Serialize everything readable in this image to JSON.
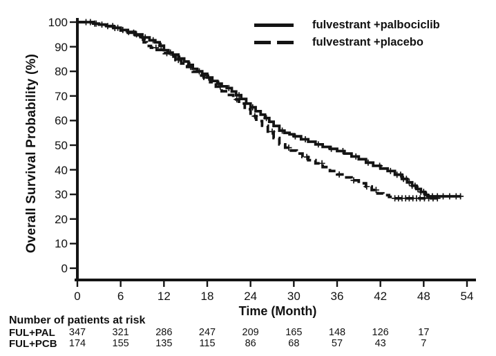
{
  "figure": {
    "background_color": "#ffffff",
    "line_color": "#141414"
  },
  "chart_data": {
    "type": "line",
    "subtype": "kaplan-meier-step",
    "title": "",
    "xlabel": "Time (Month)",
    "ylabel": "Overall Survival Probability (%)",
    "xlim": [
      0,
      54
    ],
    "ylim": [
      0,
      100
    ],
    "x_ticks": [
      0,
      6,
      12,
      18,
      24,
      30,
      36,
      42,
      48,
      54
    ],
    "y_ticks": [
      0,
      10,
      20,
      30,
      40,
      50,
      60,
      70,
      80,
      90,
      100
    ],
    "grid": false,
    "legend_position": "top-right",
    "series": [
      {
        "name": "fulvestrant +palbociclib",
        "style": "solid",
        "points": [
          [
            0,
            100
          ],
          [
            1.6,
            100
          ],
          [
            2.2,
            99.4
          ],
          [
            3,
            99
          ],
          [
            4,
            98.4
          ],
          [
            5,
            97.7
          ],
          [
            6,
            96.8
          ],
          [
            7,
            96
          ],
          [
            8,
            95
          ],
          [
            9,
            93.8
          ],
          [
            10,
            92.6
          ],
          [
            10.8,
            91.8
          ],
          [
            11.4,
            90.4
          ],
          [
            12,
            88.6
          ],
          [
            12.6,
            87.6
          ],
          [
            13.2,
            86.8
          ],
          [
            14,
            85.2
          ],
          [
            14.8,
            84
          ],
          [
            15.4,
            82.6
          ],
          [
            16,
            81
          ],
          [
            16.6,
            80
          ],
          [
            17.3,
            79
          ],
          [
            18,
            77.5
          ],
          [
            18.7,
            76.1
          ],
          [
            19.4,
            75
          ],
          [
            20,
            73.9
          ],
          [
            20.7,
            73.2
          ],
          [
            21.4,
            71.8
          ],
          [
            22,
            70.3
          ],
          [
            22.7,
            68.8
          ],
          [
            23.4,
            66.9
          ],
          [
            24,
            65.4
          ],
          [
            24.7,
            63.8
          ],
          [
            25.4,
            62.4
          ],
          [
            26,
            61
          ],
          [
            26.6,
            59.5
          ],
          [
            27.2,
            57.8
          ],
          [
            28,
            55.9
          ],
          [
            28.7,
            55
          ],
          [
            29.4,
            54.4
          ],
          [
            30,
            53.6
          ],
          [
            31,
            52.4
          ],
          [
            32,
            51.4
          ],
          [
            33,
            50.3
          ],
          [
            34,
            49.3
          ],
          [
            35,
            48.5
          ],
          [
            36,
            47.6
          ],
          [
            37,
            46.6
          ],
          [
            38,
            45.4
          ],
          [
            39,
            44.3
          ],
          [
            40,
            42.9
          ],
          [
            41,
            41.6
          ],
          [
            42,
            40.5
          ],
          [
            43,
            39.5
          ],
          [
            44,
            38
          ],
          [
            45,
            36.3
          ],
          [
            45.7,
            34.9
          ],
          [
            46.4,
            33.5
          ],
          [
            47,
            32.2
          ],
          [
            47.6,
            31
          ],
          [
            48.2,
            29.8
          ],
          [
            48.6,
            29.2
          ],
          [
            53.2,
            29.2
          ]
        ],
        "censor_times": [
          1.2,
          1.8,
          2.6,
          3.4,
          4.2,
          4.9,
          5.6,
          6.3,
          7.1,
          8.2,
          9.4,
          10.5,
          11.6,
          12.9,
          14.2,
          15.6,
          16.9,
          18.2,
          19.6,
          21,
          22.4,
          24.3,
          26.2,
          28.4,
          30.2,
          31.6,
          33.4,
          35.2,
          36.8,
          38.6,
          40.3,
          41.9,
          43.4,
          44.3,
          44.8,
          45.2,
          45.6,
          46,
          46.4,
          46.8,
          47.2,
          47.6,
          48,
          48.4,
          49.2,
          49.9,
          50.7,
          51.6,
          52.5,
          53.1
        ]
      },
      {
        "name": "fulvestrant +placebo",
        "style": "dashed",
        "points": [
          [
            0,
            100
          ],
          [
            1.6,
            100
          ],
          [
            2.2,
            99.4
          ],
          [
            3,
            99
          ],
          [
            4,
            98.3
          ],
          [
            5,
            97.6
          ],
          [
            6,
            96.6
          ],
          [
            7,
            95.7
          ],
          [
            8,
            94.7
          ],
          [
            8.7,
            93.6
          ],
          [
            9.2,
            91.8
          ],
          [
            9.6,
            90.3
          ],
          [
            10.2,
            89.6
          ],
          [
            11,
            88.7
          ],
          [
            12,
            87.4
          ],
          [
            12.8,
            86
          ],
          [
            13.6,
            84.6
          ],
          [
            14.4,
            83.2
          ],
          [
            15.2,
            81.8
          ],
          [
            16,
            79.8
          ],
          [
            16.8,
            78.3
          ],
          [
            17.6,
            77
          ],
          [
            18.4,
            75.6
          ],
          [
            19.2,
            73.8
          ],
          [
            20,
            71.9
          ],
          [
            20.8,
            70.4
          ],
          [
            21.6,
            68.6
          ],
          [
            22.4,
            66.9
          ],
          [
            23.2,
            64.6
          ],
          [
            24,
            61.8
          ],
          [
            24.8,
            59.8
          ],
          [
            25.6,
            57.9
          ],
          [
            26.4,
            55.5
          ],
          [
            27.2,
            52.9
          ],
          [
            28,
            50.3
          ],
          [
            28.8,
            49
          ],
          [
            29.6,
            47.8
          ],
          [
            30.4,
            46.6
          ],
          [
            31.2,
            45.2
          ],
          [
            32,
            43.9
          ],
          [
            33,
            42.6
          ],
          [
            34,
            41.1
          ],
          [
            35,
            39.5
          ],
          [
            36,
            38.1
          ],
          [
            37,
            36.9
          ],
          [
            38,
            35.7
          ],
          [
            39,
            34.5
          ],
          [
            40,
            33.2
          ],
          [
            40.8,
            31.8
          ],
          [
            41.6,
            30.4
          ],
          [
            42.4,
            29.7
          ],
          [
            43.2,
            29
          ],
          [
            43.8,
            28.4
          ],
          [
            50.2,
            28.4
          ]
        ],
        "censor_times": [
          2.4,
          5.2,
          7.8,
          9,
          10.9,
          12.4,
          14,
          15.7,
          17.4,
          19.8,
          22.1,
          24.6,
          27,
          29.3,
          31.8,
          33.9,
          36.3,
          38.3,
          40.1,
          41.4,
          44,
          44.5,
          45,
          45.5,
          46,
          46.5,
          47,
          47.5,
          48.1,
          48.7,
          49.3,
          49.9
        ]
      }
    ]
  },
  "risk_table": {
    "title": "Number of patients at risk",
    "time_points": [
      0,
      6,
      12,
      18,
      24,
      30,
      36,
      42,
      48
    ],
    "rows": [
      {
        "label": "FUL+PAL",
        "counts": [
          347,
          321,
          286,
          247,
          209,
          165,
          148,
          126,
          17
        ]
      },
      {
        "label": "FUL+PCB",
        "counts": [
          174,
          155,
          135,
          115,
          86,
          68,
          57,
          43,
          7
        ]
      }
    ]
  }
}
